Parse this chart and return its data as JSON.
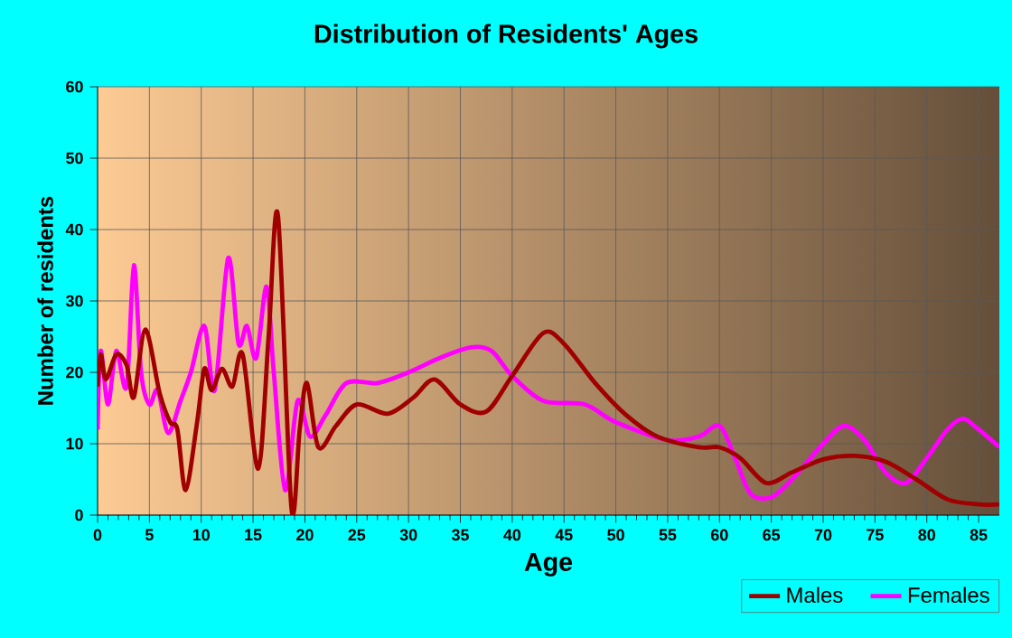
{
  "chart_data": {
    "type": "line",
    "title": "Distribution of Residents' Ages",
    "xlabel": "Age",
    "ylabel": "Number of residents",
    "xlim": [
      0,
      87
    ],
    "xticks": [
      0,
      5,
      10,
      15,
      20,
      25,
      30,
      35,
      40,
      45,
      50,
      55,
      60,
      65,
      70,
      75,
      80,
      85
    ],
    "ylim": [
      0,
      60
    ],
    "yticks": [
      0,
      10,
      20,
      30,
      40,
      50,
      60
    ],
    "grid": true,
    "legend": "bottom right",
    "marker": "none",
    "line_style": "solid",
    "series": [
      {
        "name": "Males",
        "color": "#a00000",
        "x": [
          0,
          0.3,
          0.8,
          1.8,
          2.8,
          3.5,
          4.6,
          6,
          7,
          7.7,
          8.5,
          9.6,
          10.3,
          11,
          12,
          13,
          14,
          15.5,
          16.5,
          17.4,
          18.7,
          19.5,
          20.2,
          21.3,
          23,
          25,
          28,
          30.5,
          32.5,
          35,
          37.5,
          40,
          43,
          45,
          48,
          51,
          54,
          58,
          60,
          62,
          64.5,
          67,
          70,
          73,
          76,
          79,
          82,
          85,
          87
        ],
        "values": [
          18,
          22.5,
          19,
          22.5,
          21,
          16.5,
          26,
          17,
          13,
          12,
          3.5,
          13,
          20.5,
          17.5,
          20.5,
          18,
          22.5,
          6.5,
          25,
          42,
          1,
          12,
          18.5,
          9.5,
          12.5,
          15.5,
          14.2,
          16.5,
          19,
          15.5,
          14.5,
          19.5,
          25.5,
          24,
          18.5,
          14,
          11,
          9.5,
          9.5,
          8,
          4.5,
          6,
          7.8,
          8.3,
          7.5,
          5,
          2.2,
          1.5,
          1.5
        ]
      },
      {
        "name": "Females",
        "color": "#ff00ff",
        "x": [
          0,
          0.3,
          1,
          1.8,
          2.8,
          3.5,
          4.2,
          5,
          5.8,
          6.8,
          8,
          9,
          10.3,
          11.3,
          12.6,
          13.6,
          14.4,
          15.3,
          16.3,
          17,
          18.1,
          19.3,
          20.5,
          22,
          24,
          27,
          30,
          33,
          36,
          38,
          40,
          43,
          47,
          50,
          55,
          58,
          60,
          61.5,
          63,
          65,
          67,
          70,
          72,
          74,
          76,
          78,
          80,
          82,
          83.5,
          85,
          87
        ],
        "values": [
          12,
          23,
          15.5,
          23,
          18,
          35,
          20,
          15.5,
          17.5,
          11.5,
          16,
          20,
          26.5,
          17.5,
          36,
          24,
          26.5,
          22,
          32,
          20,
          3.5,
          16,
          11,
          14,
          18.5,
          18.5,
          20,
          22,
          23.5,
          23,
          19.5,
          16,
          15.5,
          13,
          10.5,
          11,
          12.5,
          8,
          3,
          2.5,
          5,
          10,
          12.5,
          10.5,
          6,
          4.5,
          8,
          12,
          13.5,
          12,
          9.5
        ]
      }
    ]
  }
}
